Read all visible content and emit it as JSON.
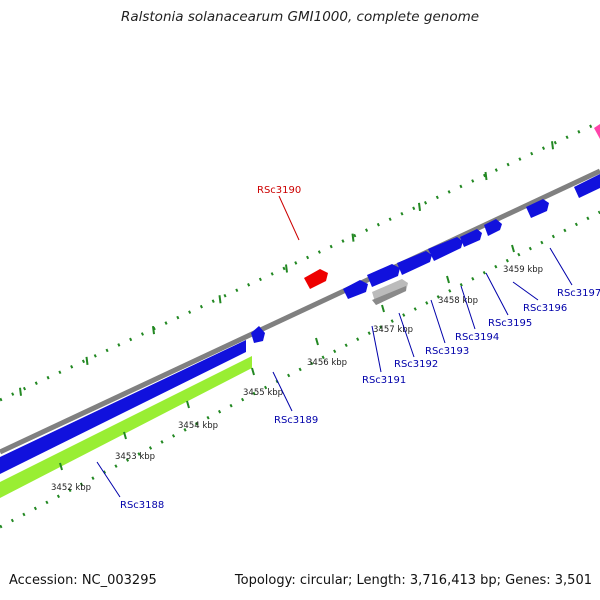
{
  "title": "Ralstonia solanacearum GMI1000, complete genome",
  "footer": {
    "accession": "Accession: NC_003295",
    "summary": "Topology: circular; Length: 3,716,413 bp; Genes: 3,501"
  },
  "colors": {
    "forward_gene": "#1111dd",
    "reverse_gene": "#ee0000",
    "pseudo_gene": "#bbbbbb",
    "other_feature": "#ff44aa",
    "backbone": "#808080",
    "forward_band": "#1111dd",
    "green_band": "#99ee33",
    "scale_ticks": "#228822",
    "label_forward": "#0000aa",
    "label_reverse": "#cc0000"
  },
  "scale_ticks": [
    "3452 kbp",
    "3453 kbp",
    "3454 kbp",
    "3455 kbp",
    "3456 kbp",
    "3457 kbp",
    "3458 kbp",
    "3459 kbp"
  ],
  "gene_labels": [
    {
      "name": "RSc3188",
      "strand": "forward"
    },
    {
      "name": "RSc3189",
      "strand": "forward"
    },
    {
      "name": "RSc3190",
      "strand": "reverse"
    },
    {
      "name": "RSc3191",
      "strand": "forward"
    },
    {
      "name": "RSc3192",
      "strand": "forward"
    },
    {
      "name": "RSc3193",
      "strand": "forward"
    },
    {
      "name": "RSc3194",
      "strand": "forward"
    },
    {
      "name": "RSc3195",
      "strand": "forward"
    },
    {
      "name": "RSc3196",
      "strand": "forward"
    },
    {
      "name": "RSc3197",
      "strand": "forward"
    }
  ]
}
